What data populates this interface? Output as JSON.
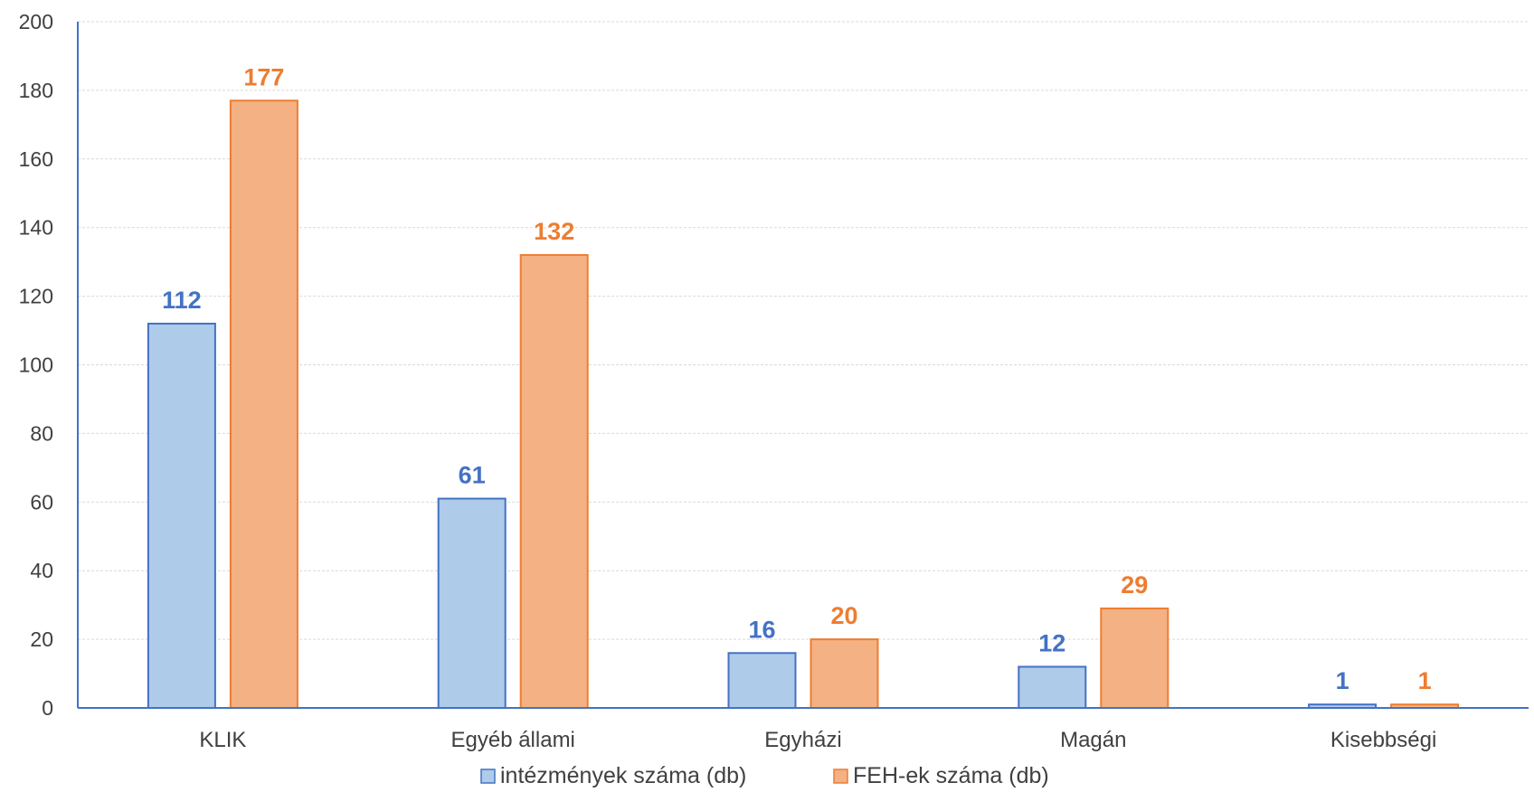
{
  "chart_data": {
    "type": "bar",
    "categories": [
      "KLIK",
      "Egyéb állami",
      "Egyházi",
      "Magán",
      "Kisebbségi"
    ],
    "series": [
      {
        "name": "intézmények száma (db)",
        "values": [
          112,
          61,
          16,
          12,
          1
        ],
        "fill": "#aecbea",
        "stroke": "#4472c4",
        "label_color": "#4472c4"
      },
      {
        "name": "FEH-ek száma (db)",
        "values": [
          177,
          132,
          20,
          29,
          1
        ],
        "fill": "#f4b183",
        "stroke": "#ed7d31",
        "label_color": "#ed7d31"
      }
    ],
    "title": "",
    "xlabel": "",
    "ylabel": "",
    "ylim": [
      0,
      200
    ],
    "yticks": [
      0,
      20,
      40,
      60,
      80,
      100,
      120,
      140,
      160,
      180,
      200
    ],
    "grid": true,
    "legend": "bottom",
    "axis_color": "#4472c4",
    "grid_color": "#d9d9d9"
  }
}
